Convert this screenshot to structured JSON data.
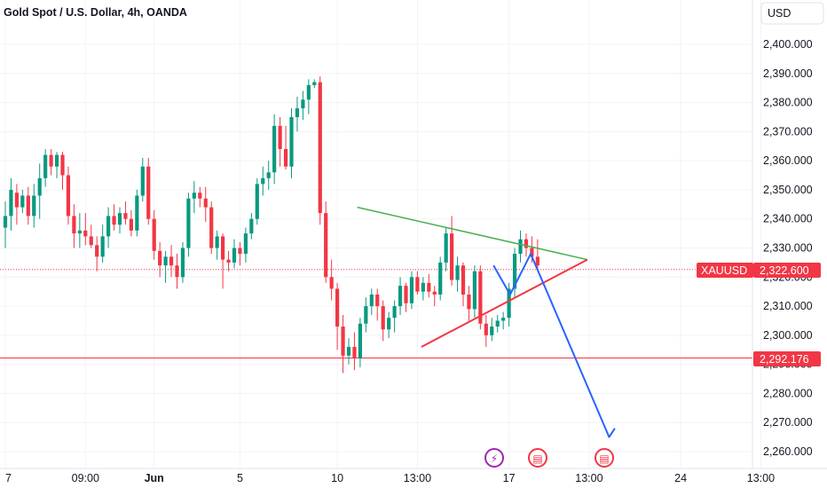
{
  "header": {
    "title": "Gold Spot / U.S. Dollar, 4h, OANDA",
    "currency_button": "USD"
  },
  "colors": {
    "up": "#089981",
    "down": "#f23645",
    "resistance": "#4caf50",
    "support": "#f23645",
    "projection": "#2962ff",
    "grid": "#f0f3fa",
    "axis_text": "#131722"
  },
  "markers": [
    {
      "name": "dividend-icon",
      "glyph": "⚡",
      "color": "#9c27b0"
    },
    {
      "name": "us-flag-icon",
      "glyph": "▤",
      "color": "#f23645"
    },
    {
      "name": "us-flag-icon",
      "glyph": "▤",
      "color": "#f23645"
    }
  ],
  "chart_data": {
    "type": "candlestick",
    "symbol": "XAUUSD",
    "last_price_label": "2,322.600",
    "level_label": "2,292.176",
    "ylim": [
      2255,
      2412
    ],
    "yticks": [
      "2,400.000",
      "2,390.000",
      "2,380.000",
      "2,370.000",
      "2,360.000",
      "2,350.000",
      "2,340.000",
      "2,330.000",
      "2,320.000",
      "2,310.000",
      "2,300.000",
      "2,290.000",
      "2,280.000",
      "2,270.000",
      "2,260.000"
    ],
    "xticks": [
      "7",
      "09:00",
      "Jun",
      "5",
      "10",
      "13:00",
      "17",
      "13:00",
      "24",
      "13:00"
    ],
    "price_line": 2322.6,
    "support_line": 2292.176,
    "candles": [
      {
        "o": 2337,
        "h": 2346,
        "l": 2330,
        "c": 2341
      },
      {
        "o": 2341,
        "h": 2354,
        "l": 2336,
        "c": 2350
      },
      {
        "o": 2349,
        "h": 2352,
        "l": 2338,
        "c": 2344
      },
      {
        "o": 2344,
        "h": 2350,
        "l": 2342,
        "c": 2348
      },
      {
        "o": 2348,
        "h": 2351,
        "l": 2338,
        "c": 2341
      },
      {
        "o": 2341,
        "h": 2352,
        "l": 2337,
        "c": 2348
      },
      {
        "o": 2348,
        "h": 2359,
        "l": 2340,
        "c": 2354
      },
      {
        "o": 2354,
        "h": 2364,
        "l": 2351,
        "c": 2362
      },
      {
        "o": 2362,
        "h": 2364,
        "l": 2355,
        "c": 2358
      },
      {
        "o": 2358,
        "h": 2363,
        "l": 2354,
        "c": 2362
      },
      {
        "o": 2362,
        "h": 2363,
        "l": 2350,
        "c": 2355
      },
      {
        "o": 2355,
        "h": 2358,
        "l": 2338,
        "c": 2341
      },
      {
        "o": 2341,
        "h": 2345,
        "l": 2330,
        "c": 2335
      },
      {
        "o": 2335,
        "h": 2342,
        "l": 2330,
        "c": 2336
      },
      {
        "o": 2336,
        "h": 2342,
        "l": 2331,
        "c": 2334
      },
      {
        "o": 2334,
        "h": 2338,
        "l": 2330,
        "c": 2331
      },
      {
        "o": 2331,
        "h": 2334,
        "l": 2322,
        "c": 2327
      },
      {
        "o": 2327,
        "h": 2338,
        "l": 2325,
        "c": 2334
      },
      {
        "o": 2334,
        "h": 2344,
        "l": 2330,
        "c": 2341
      },
      {
        "o": 2341,
        "h": 2345,
        "l": 2336,
        "c": 2338
      },
      {
        "o": 2338,
        "h": 2344,
        "l": 2335,
        "c": 2342
      },
      {
        "o": 2342,
        "h": 2346,
        "l": 2338,
        "c": 2340
      },
      {
        "o": 2340,
        "h": 2343,
        "l": 2334,
        "c": 2336
      },
      {
        "o": 2336,
        "h": 2350,
        "l": 2334,
        "c": 2348
      },
      {
        "o": 2348,
        "h": 2361,
        "l": 2346,
        "c": 2358
      },
      {
        "o": 2358,
        "h": 2361,
        "l": 2338,
        "c": 2340
      },
      {
        "o": 2340,
        "h": 2343,
        "l": 2326,
        "c": 2329
      },
      {
        "o": 2329,
        "h": 2332,
        "l": 2320,
        "c": 2324
      },
      {
        "o": 2324,
        "h": 2329,
        "l": 2318,
        "c": 2327
      },
      {
        "o": 2327,
        "h": 2331,
        "l": 2320,
        "c": 2324
      },
      {
        "o": 2324,
        "h": 2328,
        "l": 2316,
        "c": 2320
      },
      {
        "o": 2320,
        "h": 2332,
        "l": 2318,
        "c": 2330
      },
      {
        "o": 2330,
        "h": 2349,
        "l": 2327,
        "c": 2347
      },
      {
        "o": 2347,
        "h": 2353,
        "l": 2342,
        "c": 2349
      },
      {
        "o": 2349,
        "h": 2351,
        "l": 2344,
        "c": 2347
      },
      {
        "o": 2347,
        "h": 2351,
        "l": 2339,
        "c": 2344
      },
      {
        "o": 2344,
        "h": 2346,
        "l": 2328,
        "c": 2330
      },
      {
        "o": 2330,
        "h": 2336,
        "l": 2326,
        "c": 2334
      },
      {
        "o": 2334,
        "h": 2335,
        "l": 2316,
        "c": 2326
      },
      {
        "o": 2326,
        "h": 2329,
        "l": 2322,
        "c": 2325
      },
      {
        "o": 2325,
        "h": 2333,
        "l": 2323,
        "c": 2330
      },
      {
        "o": 2330,
        "h": 2332,
        "l": 2324,
        "c": 2328
      },
      {
        "o": 2328,
        "h": 2337,
        "l": 2325,
        "c": 2335
      },
      {
        "o": 2335,
        "h": 2342,
        "l": 2333,
        "c": 2340
      },
      {
        "o": 2340,
        "h": 2354,
        "l": 2338,
        "c": 2352
      },
      {
        "o": 2352,
        "h": 2358,
        "l": 2348,
        "c": 2354
      },
      {
        "o": 2354,
        "h": 2360,
        "l": 2350,
        "c": 2356
      },
      {
        "o": 2356,
        "h": 2376,
        "l": 2352,
        "c": 2372
      },
      {
        "o": 2372,
        "h": 2375,
        "l": 2358,
        "c": 2364
      },
      {
        "o": 2364,
        "h": 2372,
        "l": 2357,
        "c": 2358
      },
      {
        "o": 2358,
        "h": 2378,
        "l": 2354,
        "c": 2375
      },
      {
        "o": 2375,
        "h": 2382,
        "l": 2370,
        "c": 2378
      },
      {
        "o": 2378,
        "h": 2384,
        "l": 2374,
        "c": 2381
      },
      {
        "o": 2381,
        "h": 2388,
        "l": 2376,
        "c": 2386
      },
      {
        "o": 2386,
        "h": 2388,
        "l": 2385,
        "c": 2387
      },
      {
        "o": 2387,
        "h": 2389,
        "l": 2338,
        "c": 2342
      },
      {
        "o": 2342,
        "h": 2346,
        "l": 2318,
        "c": 2320
      },
      {
        "o": 2320,
        "h": 2326,
        "l": 2312,
        "c": 2316
      },
      {
        "o": 2316,
        "h": 2318,
        "l": 2295,
        "c": 2303
      },
      {
        "o": 2303,
        "h": 2307,
        "l": 2287,
        "c": 2293
      },
      {
        "o": 2293,
        "h": 2299,
        "l": 2290,
        "c": 2296
      },
      {
        "o": 2296,
        "h": 2301,
        "l": 2288,
        "c": 2292
      },
      {
        "o": 2292,
        "h": 2306,
        "l": 2289,
        "c": 2304
      },
      {
        "o": 2304,
        "h": 2313,
        "l": 2301,
        "c": 2310
      },
      {
        "o": 2310,
        "h": 2316,
        "l": 2307,
        "c": 2314
      },
      {
        "o": 2314,
        "h": 2316,
        "l": 2305,
        "c": 2310
      },
      {
        "o": 2310,
        "h": 2312,
        "l": 2298,
        "c": 2302
      },
      {
        "o": 2302,
        "h": 2308,
        "l": 2299,
        "c": 2306
      },
      {
        "o": 2306,
        "h": 2312,
        "l": 2301,
        "c": 2310
      },
      {
        "o": 2310,
        "h": 2320,
        "l": 2307,
        "c": 2317
      },
      {
        "o": 2317,
        "h": 2318,
        "l": 2308,
        "c": 2311
      },
      {
        "o": 2311,
        "h": 2322,
        "l": 2309,
        "c": 2320
      },
      {
        "o": 2320,
        "h": 2322,
        "l": 2314,
        "c": 2315
      },
      {
        "o": 2315,
        "h": 2320,
        "l": 2312,
        "c": 2318
      },
      {
        "o": 2318,
        "h": 2321,
        "l": 2313,
        "c": 2315
      },
      {
        "o": 2315,
        "h": 2317,
        "l": 2310,
        "c": 2314
      },
      {
        "o": 2314,
        "h": 2327,
        "l": 2312,
        "c": 2325
      },
      {
        "o": 2325,
        "h": 2337,
        "l": 2322,
        "c": 2335
      },
      {
        "o": 2335,
        "h": 2341,
        "l": 2317,
        "c": 2319
      },
      {
        "o": 2319,
        "h": 2327,
        "l": 2315,
        "c": 2324
      },
      {
        "o": 2324,
        "h": 2325,
        "l": 2310,
        "c": 2314
      },
      {
        "o": 2314,
        "h": 2317,
        "l": 2305,
        "c": 2309
      },
      {
        "o": 2309,
        "h": 2324,
        "l": 2306,
        "c": 2322
      },
      {
        "o": 2322,
        "h": 2324,
        "l": 2302,
        "c": 2304
      },
      {
        "o": 2304,
        "h": 2307,
        "l": 2296,
        "c": 2300
      },
      {
        "o": 2300,
        "h": 2306,
        "l": 2298,
        "c": 2303
      },
      {
        "o": 2303,
        "h": 2307,
        "l": 2301,
        "c": 2305
      },
      {
        "o": 2305,
        "h": 2308,
        "l": 2302,
        "c": 2306
      },
      {
        "o": 2306,
        "h": 2318,
        "l": 2303,
        "c": 2316
      },
      {
        "o": 2316,
        "h": 2330,
        "l": 2313,
        "c": 2328
      },
      {
        "o": 2328,
        "h": 2336,
        "l": 2325,
        "c": 2333
      },
      {
        "o": 2333,
        "h": 2335,
        "l": 2327,
        "c": 2330
      },
      {
        "o": 2330,
        "h": 2334,
        "l": 2325,
        "c": 2327
      },
      {
        "o": 2327,
        "h": 2333,
        "l": 2322,
        "c": 2324
      }
    ],
    "drawings": {
      "resistance": [
        {
          "x": "12 Jun 17:00",
          "y": 2344
        },
        {
          "x": "19 Jun 15:00",
          "y": 2326
        }
      ],
      "support": [
        {
          "x": "13 Jun 06:00",
          "y": 2296
        },
        {
          "x": "19 Jun 15:00",
          "y": 2326
        }
      ],
      "projection": [
        {
          "x": "17 Jun 01:00",
          "y": 2324
        },
        {
          "x": "17 Jun 10:00",
          "y": 2314
        },
        {
          "x": "17 Jun 23:00",
          "y": 2328
        },
        {
          "x": "21 Jun 04:00",
          "y": 2265
        },
        {
          "x": "21 Jun 10:00",
          "y": 2268
        }
      ]
    }
  }
}
